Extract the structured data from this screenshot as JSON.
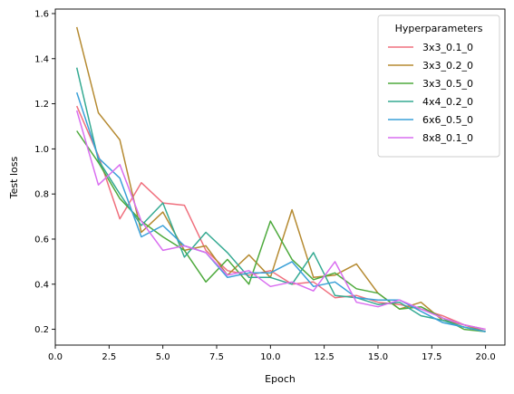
{
  "chart_data": {
    "type": "line",
    "xlabel": "Epoch",
    "ylabel": "Test loss",
    "xlim": [
      0.0,
      20.9
    ],
    "ylim": [
      0.13,
      1.62
    ],
    "xticks": [
      0.0,
      2.5,
      5.0,
      7.5,
      10.0,
      12.5,
      15.0,
      17.5,
      20.0
    ],
    "xtick_labels": [
      "0.0",
      "2.5",
      "5.0",
      "7.5",
      "10.0",
      "12.5",
      "15.0",
      "17.5",
      "20.0"
    ],
    "yticks": [
      0.2,
      0.4,
      0.6,
      0.8,
      1.0,
      1.2,
      1.4,
      1.6
    ],
    "ytick_labels": [
      "0.2",
      "0.4",
      "0.6",
      "0.8",
      "1.0",
      "1.2",
      "1.4",
      "1.6"
    ],
    "grid": false,
    "legend": {
      "title": "Hyperparameters",
      "placement": "top-right"
    },
    "x": [
      1,
      2,
      3,
      4,
      5,
      6,
      7,
      8,
      9,
      10,
      11,
      12,
      13,
      14,
      15,
      16,
      17,
      18,
      19,
      20
    ],
    "series": [
      {
        "name": "3x3_0.1_0",
        "color": "#f0707e",
        "values": [
          1.19,
          0.97,
          0.69,
          0.85,
          0.76,
          0.75,
          0.55,
          0.46,
          0.44,
          0.46,
          0.4,
          0.41,
          0.34,
          0.35,
          0.32,
          0.31,
          0.29,
          0.26,
          0.22,
          0.2
        ]
      },
      {
        "name": "3x3_0.2_0",
        "color": "#b58a31",
        "values": [
          1.54,
          1.16,
          1.04,
          0.63,
          0.72,
          0.55,
          0.57,
          0.44,
          0.53,
          0.43,
          0.73,
          0.43,
          0.44,
          0.49,
          0.36,
          0.29,
          0.32,
          0.24,
          0.22,
          0.19
        ]
      },
      {
        "name": "3x3_0.5_0",
        "color": "#4eaa3d",
        "values": [
          1.08,
          0.94,
          0.78,
          0.68,
          0.61,
          0.55,
          0.41,
          0.51,
          0.4,
          0.68,
          0.51,
          0.42,
          0.45,
          0.38,
          0.36,
          0.29,
          0.3,
          0.25,
          0.2,
          0.19
        ]
      },
      {
        "name": "4x4_0.2_0",
        "color": "#35aa92",
        "values": [
          1.36,
          0.95,
          0.8,
          0.66,
          0.76,
          0.52,
          0.63,
          0.54,
          0.43,
          0.43,
          0.4,
          0.54,
          0.35,
          0.34,
          0.31,
          0.32,
          0.26,
          0.24,
          0.21,
          0.19
        ]
      },
      {
        "name": "6x6_0.5_0",
        "color": "#3aa0d8",
        "values": [
          1.25,
          0.96,
          0.87,
          0.61,
          0.66,
          0.57,
          0.54,
          0.43,
          0.45,
          0.45,
          0.5,
          0.39,
          0.41,
          0.34,
          0.33,
          0.33,
          0.28,
          0.23,
          0.21,
          0.19
        ]
      },
      {
        "name": "8x8_0.1_0",
        "color": "#d96ef0",
        "values": [
          1.17,
          0.84,
          0.93,
          0.68,
          0.55,
          0.57,
          0.54,
          0.44,
          0.46,
          0.39,
          0.41,
          0.37,
          0.5,
          0.32,
          0.3,
          0.33,
          0.29,
          0.25,
          0.22,
          0.2
        ]
      }
    ]
  }
}
